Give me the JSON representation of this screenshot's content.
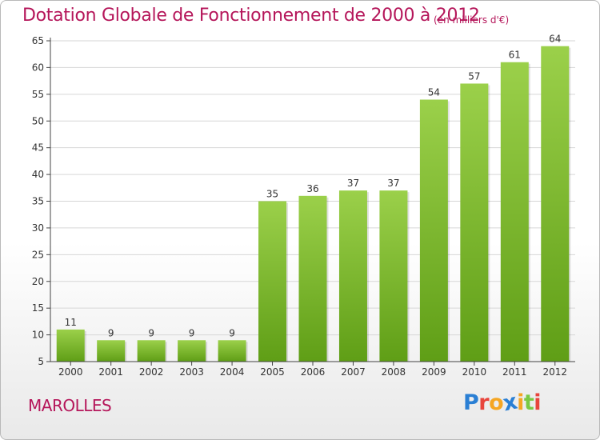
{
  "header": {
    "title": "Dotation Globale de Fonctionnement de 2000 à 2012",
    "unit": "(en milliers d'€)"
  },
  "footer": {
    "place": "MAROLLES",
    "brand_letters": [
      {
        "char": "P",
        "color": "#2a7fd4"
      },
      {
        "char": "r",
        "color": "#e8453c"
      },
      {
        "char": "o",
        "color": "#f5a623"
      },
      {
        "char": "x",
        "color": "#2a7fd4"
      },
      {
        "char": "i",
        "color": "#f5a623"
      },
      {
        "char": "t",
        "color": "#7ac943"
      },
      {
        "char": "i",
        "color": "#e8453c"
      }
    ]
  },
  "colors": {
    "accent": "#b5165a",
    "bar_top": "#9bd04a",
    "bar_bottom": "#5f9e16",
    "grid": "#d6d6d6",
    "axis": "#444444"
  },
  "chart_data": {
    "type": "bar",
    "title": "Dotation Globale de Fonctionnement de 2000 à 2012",
    "subtitle": "(en milliers d'€)",
    "categories": [
      "2000",
      "2001",
      "2002",
      "2003",
      "2004",
      "2005",
      "2006",
      "2007",
      "2008",
      "2009",
      "2010",
      "2011",
      "2012"
    ],
    "values": [
      11,
      9,
      9,
      9,
      9,
      35,
      36,
      37,
      37,
      54,
      57,
      61,
      64
    ],
    "data_labels": [
      "11",
      "9",
      "9",
      "9",
      "9",
      "35",
      "36",
      "37",
      "37",
      "54",
      "57",
      "61",
      "64"
    ],
    "ylim": [
      5,
      65
    ],
    "yticks": [
      5,
      10,
      15,
      20,
      25,
      30,
      35,
      40,
      45,
      50,
      55,
      60,
      65
    ],
    "grid": true,
    "legend": "none"
  }
}
